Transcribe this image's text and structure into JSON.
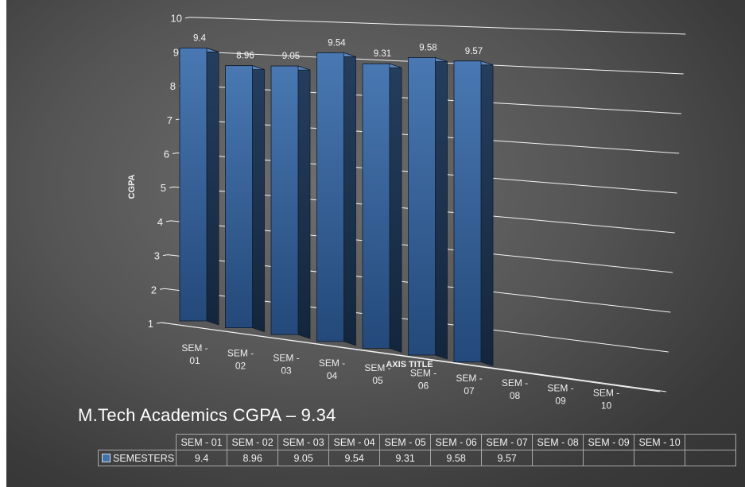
{
  "chart_data": {
    "type": "bar",
    "title": "M.Tech Academics CGPA – 9.34",
    "ylabel": "CGPA",
    "xlabel": "AXIS TITLE",
    "ylim": [
      1,
      10
    ],
    "yticks": [
      1,
      2,
      3,
      4,
      5,
      6,
      7,
      8,
      9,
      10
    ],
    "categories": [
      "SEM - 01",
      "SEM - 02",
      "SEM - 03",
      "SEM - 04",
      "SEM - 05",
      "SEM - 06",
      "SEM - 07",
      "SEM - 08",
      "SEM - 09",
      "SEM - 10"
    ],
    "series": [
      {
        "name": "SEMESTERS",
        "values": [
          9.4,
          8.96,
          9.05,
          9.54,
          9.31,
          9.58,
          9.57,
          null,
          null,
          null
        ]
      }
    ],
    "grid": true,
    "legend": "data-table",
    "colors": {
      "bar_front": "#2f5c93",
      "bar_side": "#1b3350",
      "bar_top": "#5c86bd"
    }
  }
}
